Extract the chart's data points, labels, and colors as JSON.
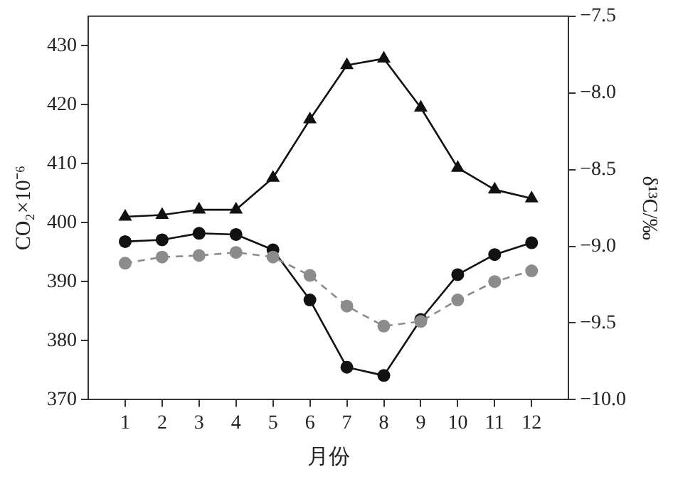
{
  "chart_data": {
    "type": "line",
    "xlabel": "月份",
    "ylabel": "CO₂×10⁻⁶",
    "y2label": "δ¹³C/‰",
    "x": [
      1,
      2,
      3,
      4,
      5,
      6,
      7,
      8,
      9,
      10,
      11,
      12
    ],
    "xlim": [
      0,
      13
    ],
    "xticks": [
      1,
      2,
      3,
      4,
      5,
      6,
      7,
      8,
      9,
      10,
      11,
      12
    ],
    "ylim": [
      370,
      435
    ],
    "yticks": [
      370,
      380,
      390,
      400,
      410,
      420,
      430
    ],
    "y2lim": [
      -10,
      -7.5
    ],
    "y2ticks": [
      {
        "value": -10,
        "label": "−10.0"
      },
      {
        "value": -9.5,
        "label": "−9.5"
      },
      {
        "value": -9,
        "label": "−9.0"
      },
      {
        "value": -8.5,
        "label": "−8.5"
      },
      {
        "value": -8,
        "label": "−8.0"
      },
      {
        "value": -7.5,
        "label": "−7.5"
      }
    ],
    "grid": false,
    "legend": false,
    "series": [
      {
        "color": "#111111",
        "marker": "triangle",
        "line_style": "solid",
        "values": [
          401.0,
          401.3,
          402.2,
          402.2,
          407.6,
          417.5,
          426.7,
          427.8,
          419.5,
          409.3,
          405.6,
          404.1
        ]
      },
      {
        "color": "#111111",
        "marker": "circle",
        "line_style": "solid",
        "values": [
          396.8,
          397.1,
          398.2,
          398.0,
          395.4,
          386.9,
          375.5,
          374.1,
          383.6,
          391.2,
          394.6,
          396.6
        ]
      },
      {
        "color": "#8c8c8c",
        "marker": "circle",
        "line_style": "dashed",
        "axis": "y2",
        "values": [
          -9.11,
          -9.07,
          -9.06,
          -9.04,
          -9.07,
          -9.19,
          -9.39,
          -9.52,
          -9.49,
          -9.35,
          -9.23,
          -9.16
        ]
      }
    ]
  }
}
